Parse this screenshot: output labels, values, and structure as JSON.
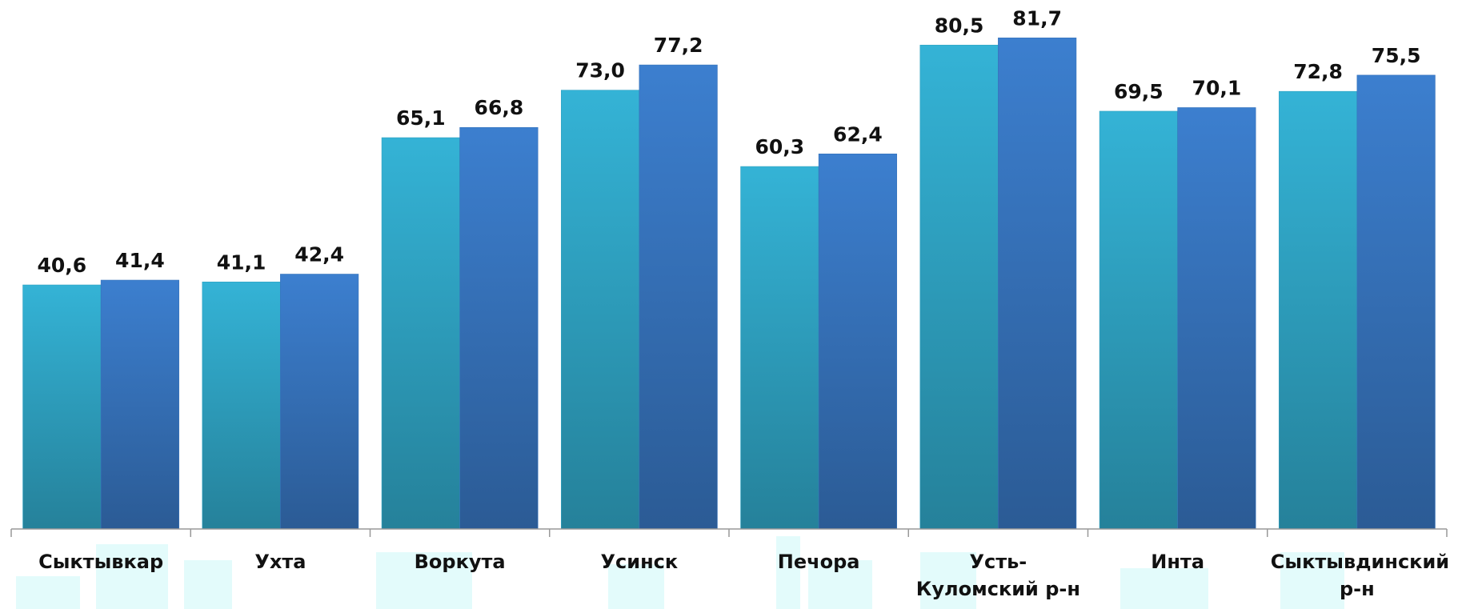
{
  "chart_data": {
    "type": "bar",
    "categories": [
      "Сыктывкар",
      "Ухта",
      "Воркута",
      "Усинск",
      "Печора",
      "Усть-Куломский р-н",
      "Инта",
      "Сыктывдинский р-н"
    ],
    "series": [
      {
        "color": "#34b3d6",
        "values": [
          40.6,
          41.1,
          65.1,
          73.0,
          60.3,
          80.5,
          69.5,
          72.8
        ],
        "value_labels": [
          "40,6",
          "41,1",
          "65,1",
          "73,0",
          "60,3",
          "80,5",
          "69,5",
          "72,8"
        ]
      },
      {
        "color": "#3c7fcf",
        "values": [
          41.4,
          42.4,
          66.8,
          77.2,
          62.4,
          81.7,
          70.1,
          75.5
        ],
        "value_labels": [
          "41,4",
          "42,4",
          "66,8",
          "77,2",
          "62,4",
          "81,7",
          "70,1",
          "75,5"
        ]
      }
    ],
    "ylim": [
      0,
      88
    ]
  }
}
